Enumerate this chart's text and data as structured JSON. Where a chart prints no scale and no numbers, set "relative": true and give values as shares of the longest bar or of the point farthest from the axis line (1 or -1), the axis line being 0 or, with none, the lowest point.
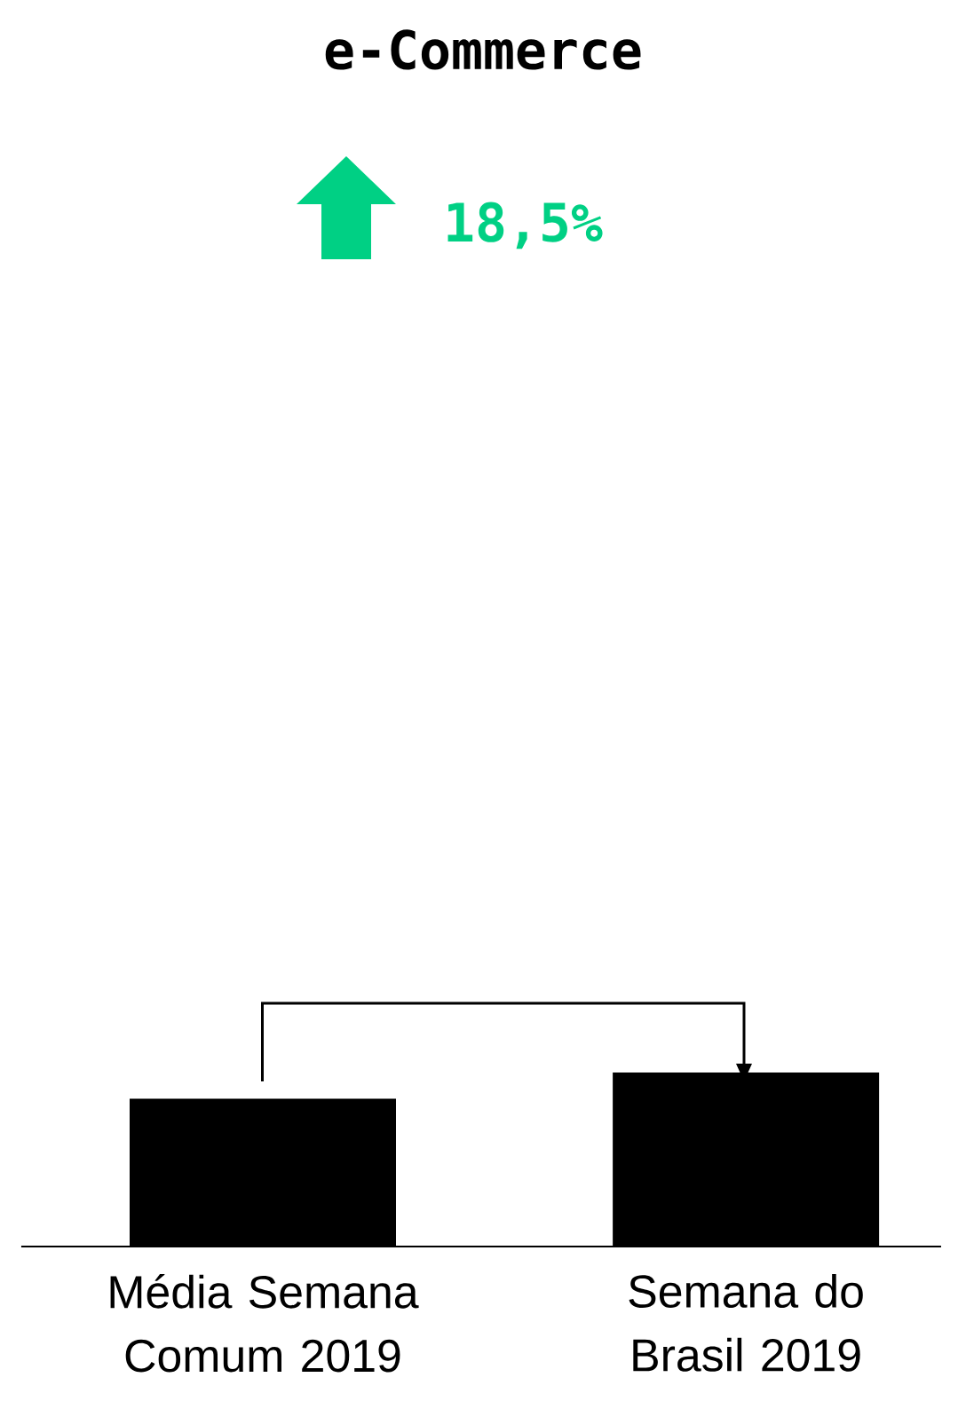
{
  "chart_data": {
    "type": "bar",
    "title": "e-Commerce",
    "annotations": [
      "18,5%"
    ],
    "categories": [
      "Média Semana Comum 2019",
      "Semana do Brasil 2019"
    ],
    "values": [
      0.85,
      1
    ],
    "color": "#000000",
    "relative": true
  }
}
